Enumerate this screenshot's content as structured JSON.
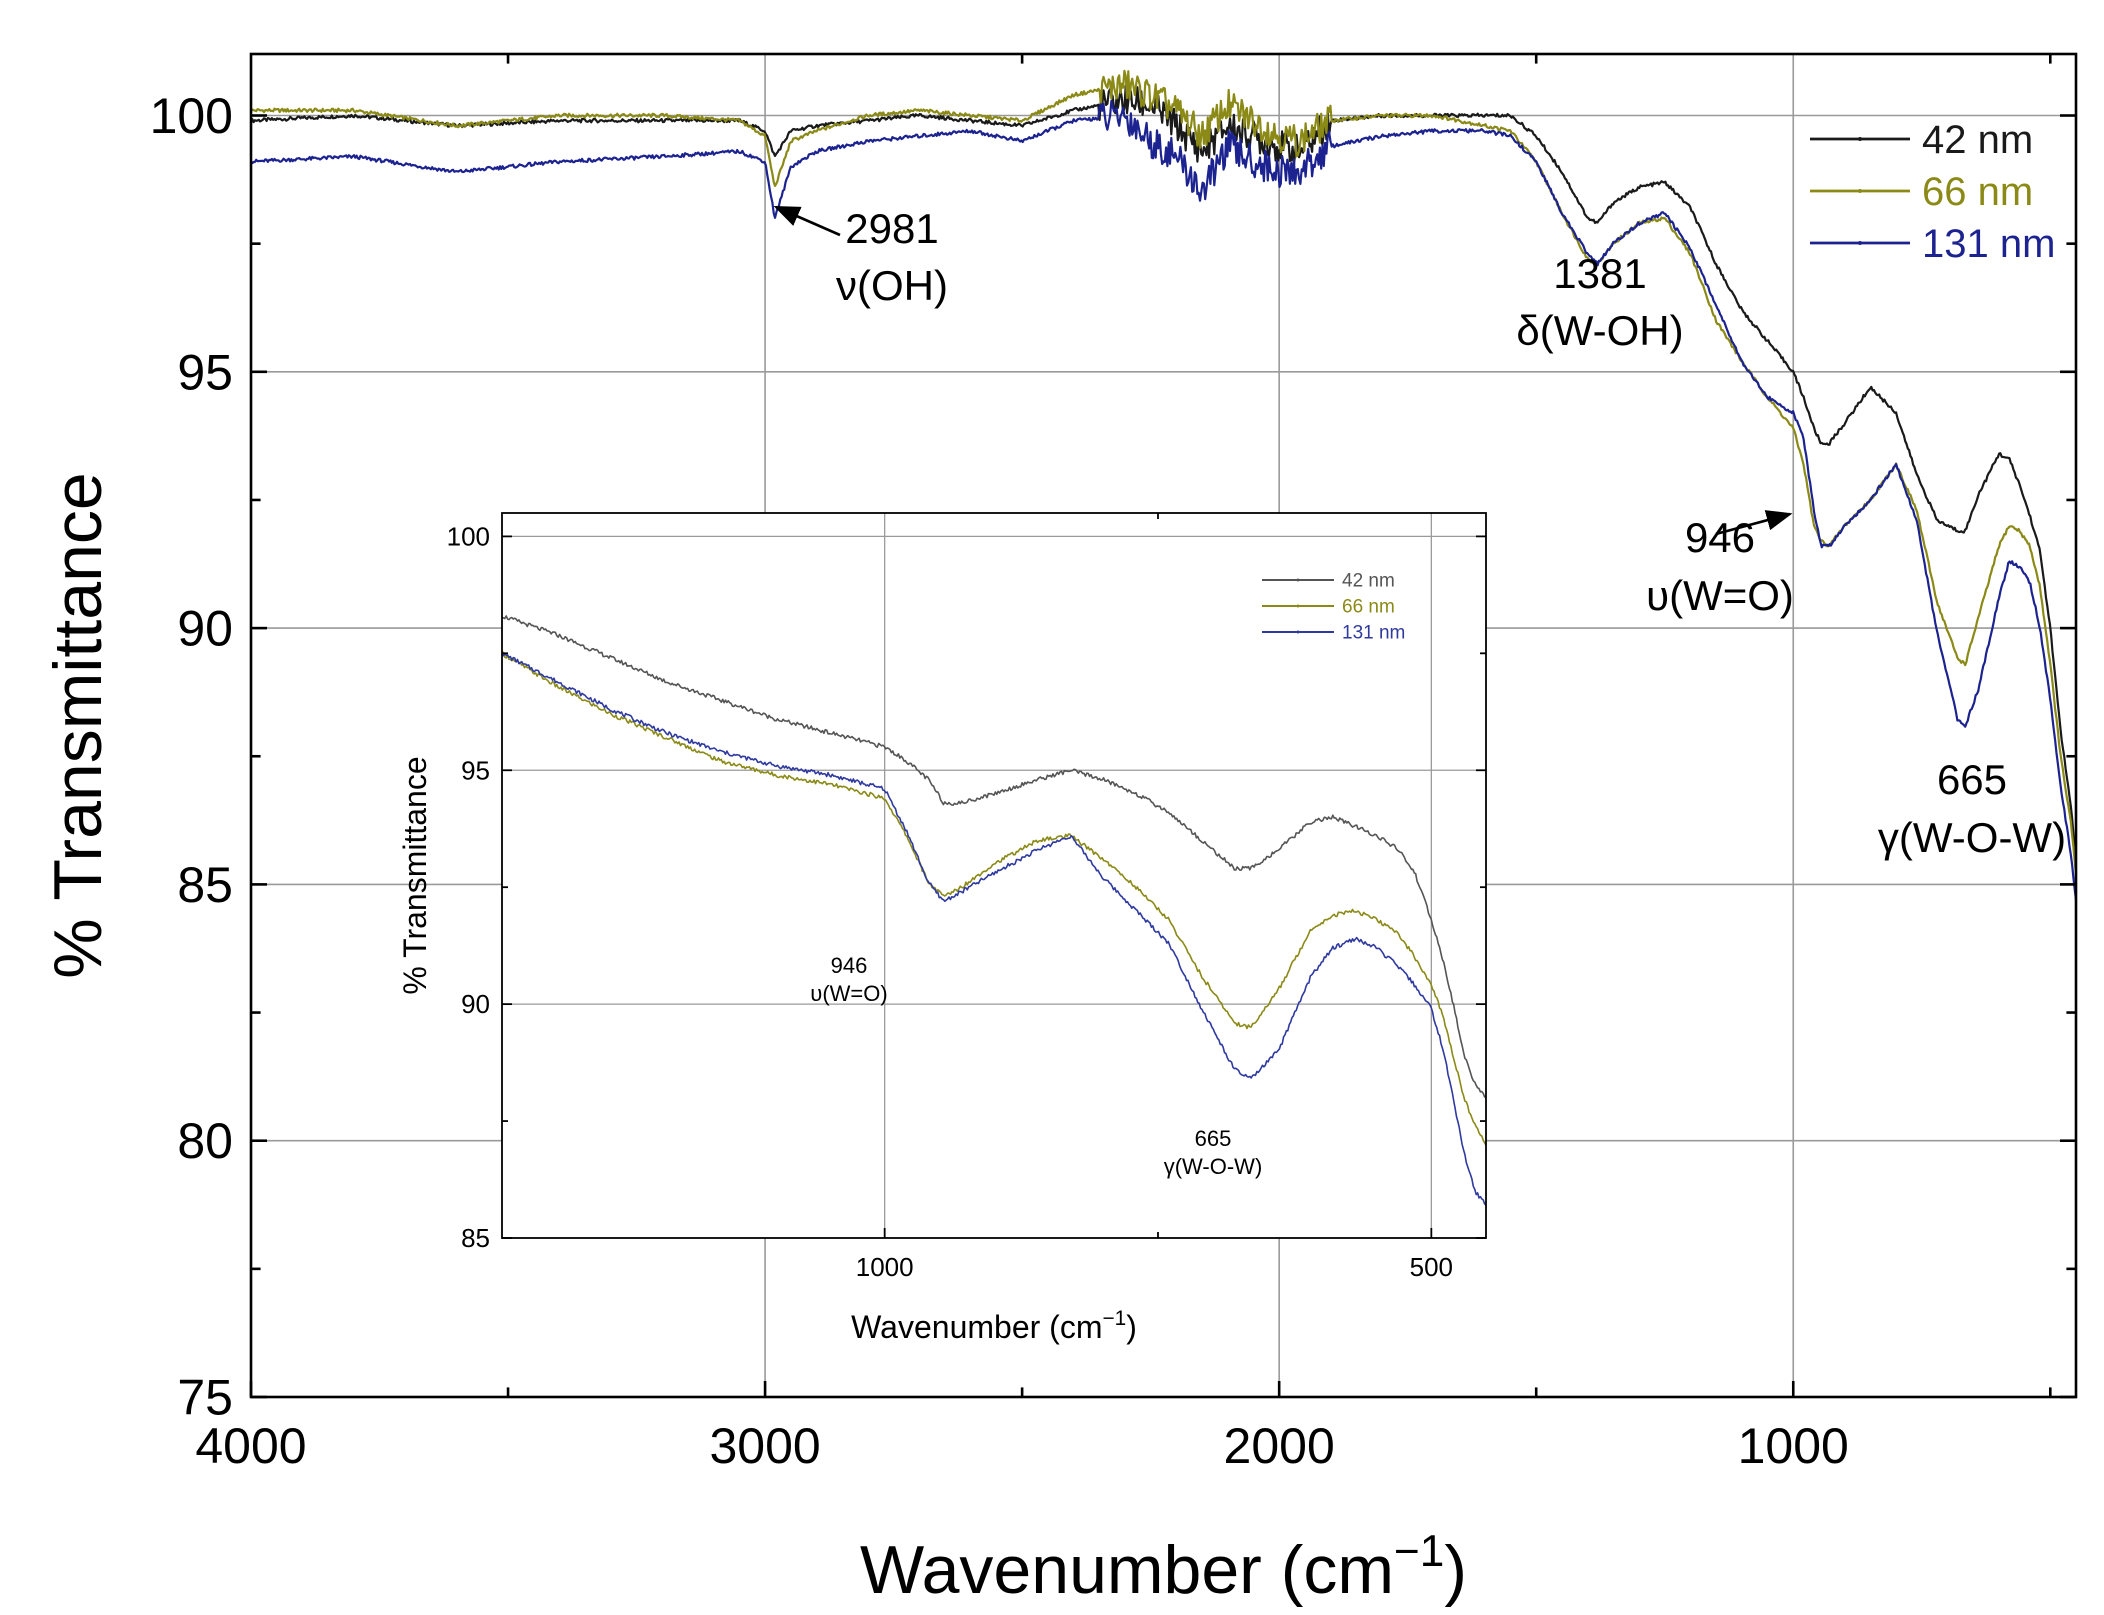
{
  "chart_data": [
    {
      "id": "main",
      "type": "line",
      "xlabel": "Wavenumber (cm",
      "xlabel_sup": "−1",
      "xlabel_close": ")",
      "ylabel": "% Transmittance",
      "xlim": [
        4000,
        450
      ],
      "ylim": [
        75,
        101.2
      ],
      "xticks": [
        4000,
        3000,
        2000,
        1000
      ],
      "xtick_labels": [
        "4000",
        "3000",
        "2000",
        "1000"
      ],
      "yticks": [
        75,
        80,
        85,
        90,
        95,
        100
      ],
      "ytick_labels": [
        "75",
        "80",
        "85",
        "90",
        "95",
        "100"
      ],
      "grid": true,
      "legend": "top-right",
      "series": [
        {
          "name": "42 nm",
          "color": "#1a1a1a",
          "x": [
            4000,
            3800,
            3600,
            3400,
            3200,
            3050,
            3000,
            2981,
            2950,
            2900,
            2800,
            2700,
            2600,
            2500,
            2400,
            2300,
            2250,
            2200,
            2150,
            2100,
            2050,
            2000,
            1960,
            1900,
            1800,
            1700,
            1600,
            1550,
            1500,
            1450,
            1400,
            1381,
            1350,
            1300,
            1250,
            1200,
            1150,
            1100,
            1050,
            1000,
            980,
            960,
            946,
            930,
            900,
            850,
            800,
            760,
            720,
            680,
            665,
            640,
            600,
            580,
            560,
            540,
            520,
            500,
            480,
            460,
            450
          ],
          "values": [
            99.9,
            100.0,
            99.8,
            99.9,
            99.9,
            99.9,
            99.7,
            99.2,
            99.7,
            99.8,
            99.9,
            100.0,
            99.9,
            99.8,
            100.1,
            100.3,
            100.2,
            99.8,
            99.3,
            99.8,
            99.6,
            99.4,
            99.3,
            99.9,
            100.0,
            100.0,
            100.0,
            100.0,
            99.6,
            98.9,
            98.0,
            97.9,
            98.3,
            98.6,
            98.7,
            98.2,
            97.1,
            96.2,
            95.6,
            95.0,
            94.5,
            93.9,
            93.6,
            93.6,
            94.0,
            94.7,
            94.2,
            93.0,
            92.1,
            91.9,
            91.9,
            92.6,
            93.4,
            93.3,
            92.8,
            92.2,
            91.5,
            90.0,
            88.0,
            86.5,
            85.5
          ]
        },
        {
          "name": "66 nm",
          "color": "#8b8a17",
          "x": [
            4000,
            3800,
            3600,
            3400,
            3200,
            3050,
            3000,
            2981,
            2950,
            2900,
            2800,
            2700,
            2600,
            2500,
            2400,
            2300,
            2250,
            2200,
            2150,
            2100,
            2050,
            2000,
            1960,
            1900,
            1800,
            1700,
            1600,
            1550,
            1500,
            1450,
            1400,
            1381,
            1350,
            1300,
            1250,
            1200,
            1150,
            1100,
            1050,
            1000,
            980,
            960,
            946,
            930,
            900,
            850,
            800,
            760,
            720,
            680,
            665,
            640,
            600,
            580,
            560,
            540,
            520,
            500,
            480,
            460,
            450
          ],
          "values": [
            100.1,
            100.1,
            99.8,
            100.0,
            100.0,
            99.9,
            99.6,
            98.6,
            99.5,
            99.7,
            100.0,
            100.1,
            100.0,
            99.9,
            100.4,
            100.6,
            100.4,
            100.1,
            99.6,
            100.2,
            99.9,
            99.6,
            99.5,
            99.9,
            100.0,
            100.0,
            99.8,
            99.7,
            99.1,
            98.1,
            97.2,
            97.1,
            97.5,
            97.9,
            98.0,
            97.3,
            96.0,
            95.2,
            94.5,
            93.9,
            93.2,
            92.0,
            91.7,
            91.6,
            92.0,
            92.5,
            93.2,
            92.3,
            90.5,
            89.4,
            89.3,
            90.2,
            91.6,
            92.0,
            91.9,
            91.6,
            90.8,
            89.3,
            87.5,
            86.2,
            85.2
          ]
        },
        {
          "name": "131 nm",
          "color": "#1c2390",
          "x": [
            4000,
            3800,
            3600,
            3400,
            3200,
            3050,
            3000,
            2981,
            2950,
            2900,
            2800,
            2700,
            2600,
            2500,
            2400,
            2300,
            2250,
            2200,
            2150,
            2100,
            2050,
            2000,
            1960,
            1900,
            1800,
            1700,
            1600,
            1550,
            1500,
            1450,
            1400,
            1381,
            1350,
            1300,
            1250,
            1200,
            1150,
            1100,
            1050,
            1000,
            980,
            960,
            946,
            930,
            900,
            850,
            800,
            760,
            720,
            680,
            665,
            640,
            600,
            580,
            560,
            540,
            520,
            500,
            480,
            460,
            450
          ],
          "values": [
            99.1,
            99.2,
            98.9,
            99.1,
            99.2,
            99.3,
            99.1,
            98.0,
            99.0,
            99.3,
            99.5,
            99.6,
            99.7,
            99.5,
            99.9,
            100.0,
            99.5,
            99.2,
            98.5,
            99.4,
            99.1,
            98.9,
            98.9,
            99.4,
            99.6,
            99.7,
            99.7,
            99.6,
            99.1,
            98.1,
            97.3,
            97.1,
            97.5,
            97.9,
            98.1,
            97.4,
            96.3,
            95.2,
            94.5,
            94.2,
            93.7,
            92.3,
            91.6,
            91.6,
            92.0,
            92.5,
            93.2,
            92.1,
            89.9,
            88.2,
            88.1,
            88.8,
            90.6,
            91.3,
            91.2,
            90.9,
            90.0,
            88.6,
            86.9,
            85.6,
            84.7
          ]
        }
      ],
      "annotations": [
        {
          "peak": "2981",
          "mode": "ν(OH)",
          "x": 2981,
          "y": 98.0,
          "arrow": true
        },
        {
          "peak": "1381",
          "mode": "δ(W-OH)",
          "x": 1381,
          "y": 97.1,
          "arrow": false
        },
        {
          "peak": "946",
          "mode": "υ(W=O)",
          "x": 946,
          "y": 91.7,
          "arrow": true
        },
        {
          "peak": "665",
          "mode": "γ(W-O-W)",
          "x": 665,
          "y": 88.1,
          "arrow": false
        }
      ]
    },
    {
      "id": "inset",
      "type": "line",
      "xlabel": "Wavenumber (cm",
      "xlabel_sup": "−1",
      "xlabel_close": ")",
      "ylabel": "% Transmittance",
      "xlim": [
        1350,
        450
      ],
      "ylim": [
        85,
        100.5
      ],
      "xticks": [
        1000,
        500
      ],
      "xtick_labels": [
        "1000",
        "500"
      ],
      "yticks": [
        85,
        90,
        95,
        100
      ],
      "ytick_labels": [
        "85",
        "90",
        "95",
        "100"
      ],
      "grid": true,
      "legend": "top-right",
      "series": [
        {
          "name": "42 nm",
          "color": "#555555",
          "x": [
            1350,
            1300,
            1250,
            1200,
            1150,
            1100,
            1050,
            1000,
            980,
            960,
            946,
            930,
            900,
            860,
            830,
            800,
            770,
            740,
            710,
            680,
            665,
            640,
            610,
            590,
            570,
            550,
            530,
            515,
            500,
            490,
            480,
            470,
            460,
            450
          ],
          "values": [
            98.3,
            97.9,
            97.4,
            96.9,
            96.5,
            96.1,
            95.8,
            95.5,
            95.2,
            94.8,
            94.3,
            94.3,
            94.5,
            94.8,
            95.0,
            94.8,
            94.5,
            94.1,
            93.5,
            92.9,
            92.9,
            93.3,
            93.9,
            94.0,
            93.8,
            93.6,
            93.3,
            92.8,
            91.8,
            91.0,
            90.0,
            88.9,
            88.3,
            88.0
          ]
        },
        {
          "name": "66 nm",
          "color": "#8b8a17",
          "x": [
            1350,
            1300,
            1250,
            1200,
            1150,
            1100,
            1050,
            1000,
            980,
            960,
            946,
            930,
            900,
            860,
            830,
            800,
            770,
            740,
            710,
            680,
            665,
            640,
            610,
            590,
            570,
            550,
            530,
            515,
            500,
            490,
            480,
            470,
            460,
            450
          ],
          "values": [
            97.5,
            96.8,
            96.2,
            95.7,
            95.2,
            94.9,
            94.7,
            94.4,
            93.6,
            92.6,
            92.3,
            92.5,
            93.0,
            93.5,
            93.6,
            93.1,
            92.5,
            91.8,
            90.6,
            89.6,
            89.5,
            90.3,
            91.6,
            91.9,
            92.0,
            91.8,
            91.5,
            91.0,
            90.4,
            89.8,
            88.9,
            88.0,
            87.4,
            87.0
          ]
        },
        {
          "name": "131 nm",
          "color": "#2f3aa0",
          "x": [
            1350,
            1300,
            1250,
            1200,
            1150,
            1100,
            1050,
            1000,
            980,
            960,
            946,
            930,
            900,
            860,
            830,
            800,
            770,
            740,
            710,
            680,
            665,
            640,
            610,
            590,
            570,
            550,
            530,
            515,
            500,
            490,
            480,
            470,
            460,
            450
          ],
          "values": [
            97.5,
            96.9,
            96.3,
            95.8,
            95.4,
            95.1,
            94.9,
            94.6,
            93.7,
            92.6,
            92.2,
            92.4,
            92.8,
            93.3,
            93.6,
            92.7,
            92.0,
            91.3,
            89.9,
            88.6,
            88.4,
            89.0,
            90.6,
            91.2,
            91.4,
            91.2,
            90.8,
            90.4,
            89.9,
            89.1,
            88.0,
            86.8,
            86.0,
            85.7
          ]
        }
      ],
      "annotations": [
        {
          "peak": "946",
          "mode": "υ(W=O)",
          "x": 946,
          "y": 92.2
        },
        {
          "peak": "665",
          "mode": "γ(W-O-W)",
          "x": 665,
          "y": 88.4
        }
      ]
    }
  ]
}
